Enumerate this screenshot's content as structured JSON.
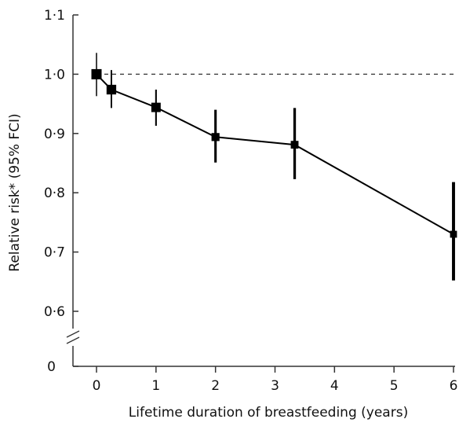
{
  "chart_data": {
    "type": "line",
    "title": "",
    "xlabel": "Lifetime duration of breastfeeding (years)",
    "ylabel": "Relative risk* (95% FCI)",
    "xlim": [
      0,
      6
    ],
    "ylim_display": [
      0.6,
      1.1
    ],
    "y_axis_break": true,
    "y_axis_zero_label": "0",
    "x_ticks": [
      {
        "value": 0,
        "label": "0"
      },
      {
        "value": 1,
        "label": "1"
      },
      {
        "value": 2,
        "label": "2"
      },
      {
        "value": 3,
        "label": "3"
      },
      {
        "value": 4,
        "label": "4"
      },
      {
        "value": 5,
        "label": "5"
      },
      {
        "value": 6,
        "label": "6"
      }
    ],
    "y_ticks": [
      {
        "value": 0.6,
        "label": "0·6"
      },
      {
        "value": 0.7,
        "label": "0·7"
      },
      {
        "value": 0.8,
        "label": "0·8"
      },
      {
        "value": 0.9,
        "label": "0·9"
      },
      {
        "value": 1.0,
        "label": "1·0"
      },
      {
        "value": 1.1,
        "label": "1·1"
      }
    ],
    "reference_line": {
      "y": 1.0,
      "style": "dashed"
    },
    "grid": false,
    "series": [
      {
        "points": [
          {
            "x": 0.0,
            "y": 1.0,
            "ci_low": 0.963,
            "ci_high": 1.036,
            "weight": 1.0
          },
          {
            "x": 0.25,
            "y": 0.974,
            "ci_low": 0.943,
            "ci_high": 1.007,
            "weight": 0.9
          },
          {
            "x": 1.0,
            "y": 0.944,
            "ci_low": 0.913,
            "ci_high": 0.974,
            "weight": 0.85
          },
          {
            "x": 2.0,
            "y": 0.894,
            "ci_low": 0.851,
            "ci_high": 0.94,
            "weight": 0.6
          },
          {
            "x": 3.33,
            "y": 0.881,
            "ci_low": 0.823,
            "ci_high": 0.943,
            "weight": 0.55
          },
          {
            "x": 6.0,
            "y": 0.73,
            "ci_low": 0.652,
            "ci_high": 0.818,
            "weight": 0.4
          }
        ]
      }
    ],
    "colors": {
      "line": "#000000",
      "marker": "#000000",
      "reference": "#333333",
      "axis": "#333333"
    }
  }
}
